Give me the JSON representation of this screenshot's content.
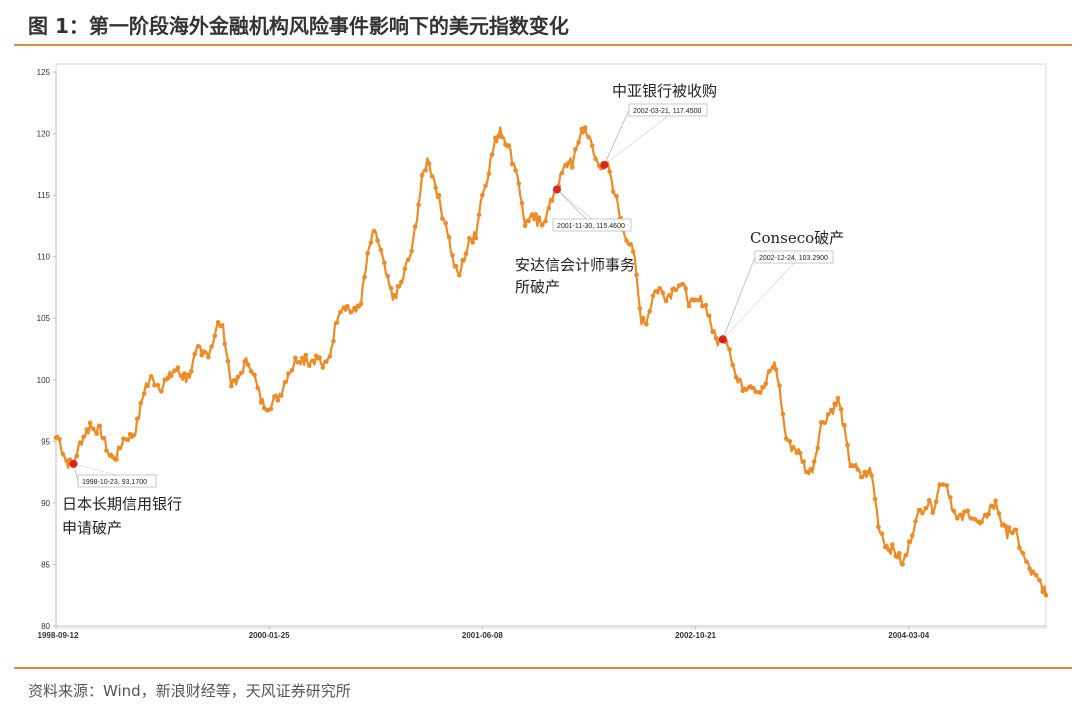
{
  "page": {
    "title": "图 1：第一阶段海外金融机构风险事件影响下的美元指数变化",
    "source": "资料来源：Wind，新浪财经等，天风证券研究所"
  },
  "colors": {
    "accent": "#e48a3c",
    "series": "#f08a24",
    "event_marker": "#e02020"
  },
  "chart_data": {
    "type": "line",
    "title": "",
    "xlabel": "",
    "ylabel": "",
    "ylim": [
      80,
      125
    ],
    "yticks": [
      80,
      85,
      90,
      95,
      100,
      105,
      110,
      115,
      120,
      125
    ],
    "xlim": [
      "1998-09-12",
      "2005-01-20"
    ],
    "xtick_labels": [
      "1998-09-12",
      "2000-01-25",
      "2001-06-08",
      "2002-10-21",
      "2004-03-04"
    ],
    "grid": false,
    "legend": "none",
    "series": [
      {
        "values": [
          [
            "1998-09-12",
            95.3
          ],
          [
            "1998-10-23",
            93.17
          ],
          [
            "1998-12-01",
            96.5
          ],
          [
            "1999-01-20",
            94.0
          ],
          [
            "1999-03-01",
            95.0
          ],
          [
            "1999-04-15",
            99.5
          ],
          [
            "1999-05-25",
            100.0
          ],
          [
            "1999-07-10",
            100.5
          ],
          [
            "1999-08-20",
            102.0
          ],
          [
            "1999-10-01",
            104.3
          ],
          [
            "1999-11-01",
            100.0
          ],
          [
            "1999-12-10",
            101.0
          ],
          [
            "2000-01-25",
            97.5
          ],
          [
            "2000-03-10",
            100.5
          ],
          [
            "2000-04-20",
            102.0
          ],
          [
            "2000-05-30",
            101.0
          ],
          [
            "2000-07-10",
            105.5
          ],
          [
            "2000-08-20",
            106.0
          ],
          [
            "2000-10-01",
            112.0
          ],
          [
            "2000-11-10",
            106.5
          ],
          [
            "2000-12-20",
            110.0
          ],
          [
            "2001-01-30",
            118.0
          ],
          [
            "2001-03-10",
            113.0
          ],
          [
            "2001-04-15",
            108.5
          ],
          [
            "2001-05-20",
            112.0
          ],
          [
            "2001-06-08",
            115.0
          ],
          [
            "2001-07-20",
            120.5
          ],
          [
            "2001-08-25",
            117.0
          ],
          [
            "2001-09-20",
            113.0
          ],
          [
            "2001-10-15",
            112.5
          ],
          [
            "2001-11-30",
            115.46
          ],
          [
            "2002-01-01",
            118.0
          ],
          [
            "2002-01-31",
            120.0
          ],
          [
            "2002-03-21",
            117.45
          ],
          [
            "2002-04-15",
            115.0
          ],
          [
            "2002-05-20",
            111.0
          ],
          [
            "2002-06-20",
            105.0
          ],
          [
            "2002-07-25",
            107.0
          ],
          [
            "2002-09-01",
            107.5
          ],
          [
            "2002-10-21",
            106.5
          ],
          [
            "2002-12-24",
            103.29
          ],
          [
            "2003-02-01",
            100.0
          ],
          [
            "2003-03-15",
            99.0
          ],
          [
            "2003-04-20",
            101.0
          ],
          [
            "2003-05-30",
            95.0
          ],
          [
            "2003-07-10",
            92.5
          ],
          [
            "2003-08-20",
            96.5
          ],
          [
            "2003-09-20",
            98.5
          ],
          [
            "2003-10-20",
            93.0
          ],
          [
            "2003-11-30",
            92.5
          ],
          [
            "2004-01-01",
            87.5
          ],
          [
            "2004-02-15",
            85.0
          ],
          [
            "2004-03-20",
            88.5
          ],
          [
            "2004-04-25",
            90.0
          ],
          [
            "2004-05-20",
            91.5
          ],
          [
            "2004-06-30",
            89.0
          ],
          [
            "2004-08-10",
            88.5
          ],
          [
            "2004-09-20",
            89.5
          ],
          [
            "2004-10-25",
            88.0
          ],
          [
            "2004-12-01",
            85.5
          ],
          [
            "2005-01-20",
            82.5
          ]
        ]
      }
    ],
    "events": [
      {
        "date": "1998-10-23",
        "value": 93.17,
        "label": "1998-10-23, 93.1700",
        "caption_lines": [
          "日本长期信用银行",
          "申请破产"
        ]
      },
      {
        "date": "2001-11-30",
        "value": 115.46,
        "label": "2001-11-30, 115.4600",
        "caption_lines": [
          "安达信会计师事务",
          "所破产"
        ]
      },
      {
        "date": "2002-03-21",
        "value": 117.45,
        "label": "2002-03-21, 117.4500",
        "caption_lines": [
          "中亚银行被收购"
        ]
      },
      {
        "date": "2002-12-24",
        "value": 103.29,
        "label": "2002-12-24, 103.2900",
        "caption_lines": [
          "Conseco破产"
        ]
      }
    ]
  }
}
